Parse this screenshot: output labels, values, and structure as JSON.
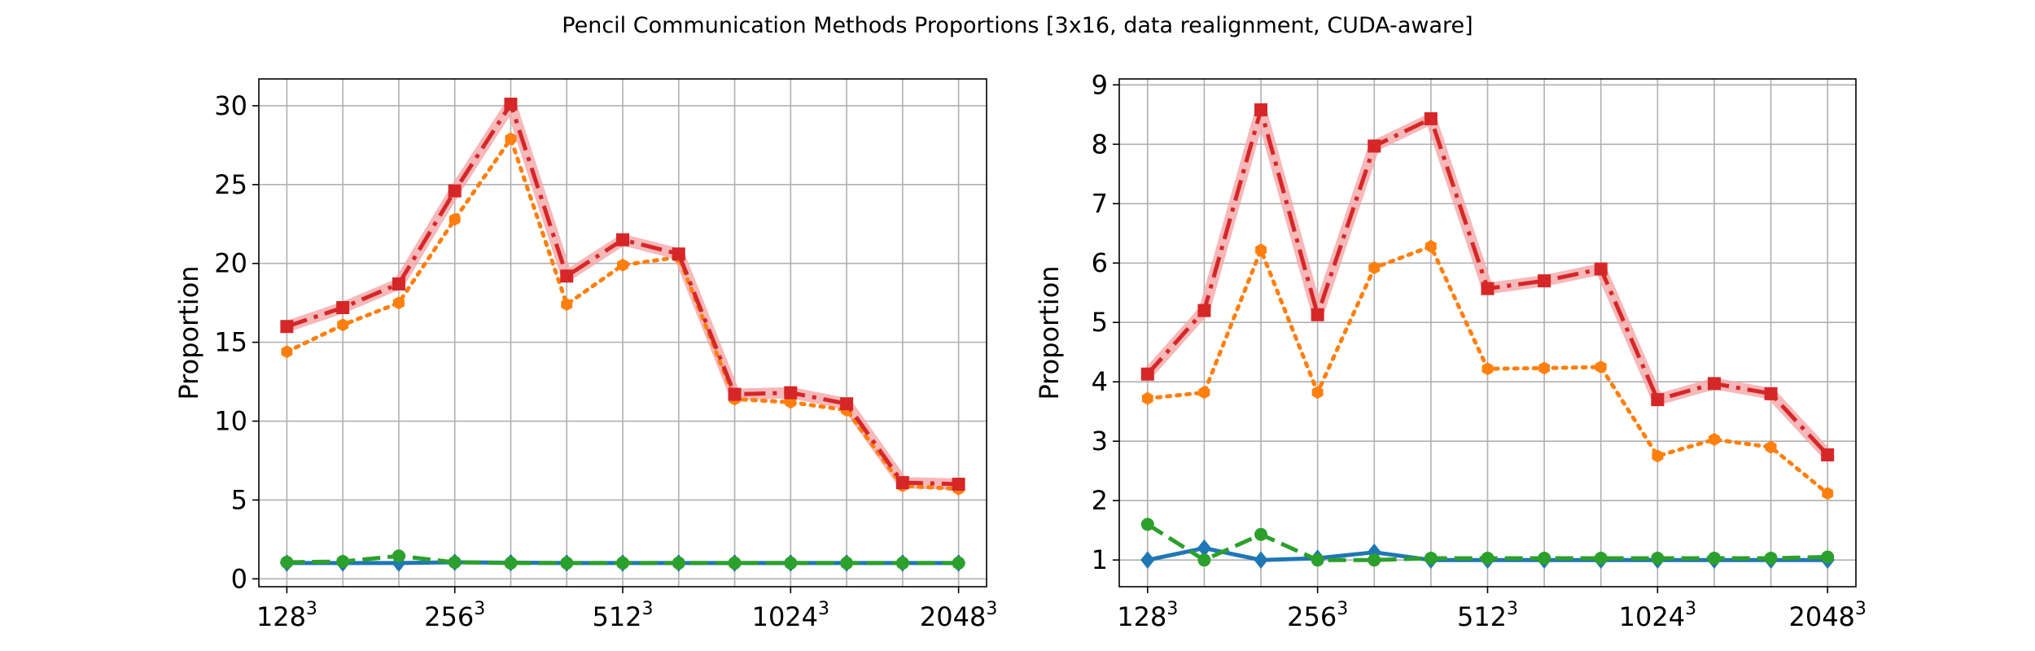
{
  "figure": {
    "title": "Pencil Communication Methods Proportions [3x16, data realignment, CUDA-aware]"
  },
  "colors": {
    "blue": "#1f77b4",
    "green": "#2ca02c",
    "orange": "#ff7f0e",
    "red": "#d62728",
    "red_band": "#f4a6a8"
  },
  "chart_data": [
    {
      "type": "line",
      "ylabel": "Proportion",
      "x": [
        0,
        1,
        2,
        3,
        4,
        5,
        6,
        7,
        8,
        9,
        10,
        11,
        12
      ],
      "xtick_labels": [
        {
          "base": "128",
          "exp": "3"
        },
        {
          "base": "256",
          "exp": "3"
        },
        {
          "base": "512",
          "exp": "3"
        },
        {
          "base": "1024",
          "exp": "3"
        },
        {
          "base": "2048",
          "exp": "3"
        }
      ],
      "xtick_positions": [
        0,
        3,
        6,
        9,
        12
      ],
      "xlim": [
        -0.5,
        12.5
      ],
      "ylim": [
        -0.5,
        31.7
      ],
      "yticks": [
        0,
        5,
        10,
        15,
        20,
        25,
        30
      ],
      "grid": true,
      "series": [
        {
          "color": "blue",
          "linestyle": "solid",
          "marker": "diamond",
          "values": [
            1.0,
            1.0,
            1.0,
            1.05,
            1.02,
            1.0,
            1.0,
            1.0,
            1.0,
            1.0,
            1.0,
            1.0,
            1.0
          ]
        },
        {
          "color": "green",
          "linestyle": "dashed",
          "marker": "circle",
          "values": [
            1.05,
            1.1,
            1.45,
            1.05,
            1.0,
            1.0,
            1.0,
            1.0,
            1.0,
            1.0,
            1.0,
            1.0,
            1.0
          ]
        },
        {
          "color": "orange",
          "linestyle": "dotted",
          "marker": "hexagon",
          "values": [
            14.4,
            16.1,
            17.5,
            22.8,
            27.9,
            17.4,
            19.9,
            20.4,
            11.4,
            11.2,
            10.7,
            5.9,
            5.7
          ]
        },
        {
          "color": "red",
          "linestyle": "dashdot",
          "marker": "square",
          "values": [
            16.0,
            17.2,
            18.7,
            24.6,
            30.1,
            19.2,
            21.5,
            20.6,
            11.7,
            11.8,
            11.1,
            6.1,
            6.0
          ]
        }
      ]
    },
    {
      "type": "line",
      "ylabel": "Proportion",
      "x": [
        0,
        1,
        2,
        3,
        4,
        5,
        6,
        7,
        8,
        9,
        10,
        11,
        12
      ],
      "xtick_labels": [
        {
          "base": "128",
          "exp": "3"
        },
        {
          "base": "256",
          "exp": "3"
        },
        {
          "base": "512",
          "exp": "3"
        },
        {
          "base": "1024",
          "exp": "3"
        },
        {
          "base": "2048",
          "exp": "3"
        }
      ],
      "xtick_positions": [
        0,
        3,
        6,
        9,
        12
      ],
      "xlim": [
        -0.5,
        12.5
      ],
      "ylim": [
        0.55,
        9.1
      ],
      "yticks": [
        1,
        2,
        3,
        4,
        5,
        6,
        7,
        8,
        9
      ],
      "grid": true,
      "series": [
        {
          "color": "blue",
          "linestyle": "solid",
          "marker": "diamond",
          "values": [
            1.0,
            1.2,
            1.0,
            1.03,
            1.13,
            1.0,
            1.0,
            1.0,
            1.0,
            1.0,
            1.0,
            1.0,
            1.0
          ]
        },
        {
          "color": "green",
          "linestyle": "dashed",
          "marker": "circle",
          "values": [
            1.6,
            1.0,
            1.43,
            1.0,
            1.0,
            1.03,
            1.03,
            1.03,
            1.03,
            1.03,
            1.03,
            1.03,
            1.05
          ]
        },
        {
          "color": "orange",
          "linestyle": "dotted",
          "marker": "hexagon",
          "values": [
            3.72,
            3.82,
            6.22,
            3.82,
            5.92,
            6.28,
            4.22,
            4.23,
            4.25,
            2.75,
            3.03,
            2.9,
            2.12
          ]
        },
        {
          "color": "red",
          "linestyle": "dashdot",
          "marker": "square",
          "values": [
            4.13,
            5.2,
            8.58,
            5.13,
            7.97,
            8.43,
            5.57,
            5.7,
            5.9,
            3.7,
            3.97,
            3.8,
            2.77
          ]
        }
      ]
    }
  ]
}
